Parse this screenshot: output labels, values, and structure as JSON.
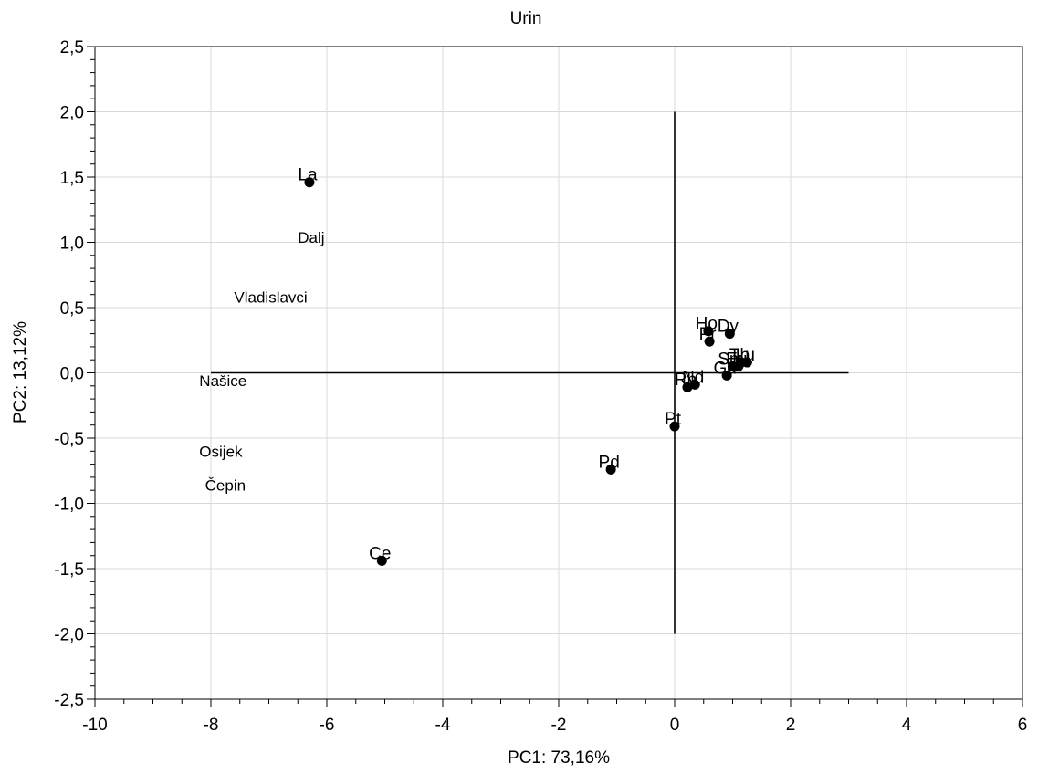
{
  "chart_data": {
    "type": "scatter",
    "title": "Urin",
    "xlabel": "PC1: 73,16%",
    "ylabel": "PC2: 13,12%",
    "xlim": [
      -10,
      6
    ],
    "ylim": [
      -2.5,
      2.5
    ],
    "x_ticks": [
      "-10",
      "-8",
      "-6",
      "-4",
      "-2",
      "0",
      "2",
      "4",
      "6"
    ],
    "y_ticks": [
      "2,5",
      "2,0",
      "1,5",
      "1,0",
      "0,5",
      "0,0",
      "-0,5",
      "-1,0",
      "-1,5",
      "-2,0",
      "-2,5"
    ],
    "grid": true,
    "reference_lines": {
      "horizontal": {
        "y": 0,
        "x_from": -8,
        "x_to": 3
      },
      "vertical": {
        "x": 0,
        "y_from": -2,
        "y_to": 2
      }
    },
    "points": [
      {
        "label": "La",
        "x": -6.3,
        "y": 1.46
      },
      {
        "label": "Ce",
        "x": -5.05,
        "y": -1.44
      },
      {
        "label": "Pd",
        "x": -1.1,
        "y": -0.74
      },
      {
        "label": "Pt",
        "x": 0.0,
        "y": -0.41
      },
      {
        "label": "Rh",
        "x": 0.22,
        "y": -0.11
      },
      {
        "label": "Nd",
        "x": 0.35,
        "y": -0.09
      },
      {
        "label": "Ho",
        "x": 0.58,
        "y": 0.32
      },
      {
        "label": "Pr",
        "x": 0.6,
        "y": 0.24
      },
      {
        "label": "Dy",
        "x": 0.95,
        "y": 0.3
      },
      {
        "label": "Gd",
        "x": 0.9,
        "y": -0.02
      },
      {
        "label": "Sm",
        "x": 1.0,
        "y": 0.05
      },
      {
        "label": "Eu",
        "x": 1.1,
        "y": 0.05
      },
      {
        "label": "Tb",
        "x": 1.15,
        "y": 0.08
      },
      {
        "label": "Lu",
        "x": 1.25,
        "y": 0.08
      }
    ],
    "location_labels": [
      {
        "label": "Dalj",
        "x": -6.5,
        "y": 1.04
      },
      {
        "label": "Vladislavci",
        "x": -7.6,
        "y": 0.58
      },
      {
        "label": "Našice",
        "x": -8.2,
        "y": -0.06
      },
      {
        "label": "Osijek",
        "x": -8.2,
        "y": -0.6
      },
      {
        "label": "Čepin",
        "x": -8.1,
        "y": -0.86
      }
    ]
  }
}
